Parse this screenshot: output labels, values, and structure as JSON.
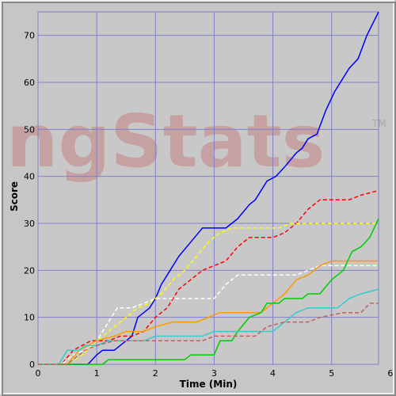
{
  "chart_data": {
    "type": "line",
    "watermark": "ngStats",
    "watermark_mark": "TM",
    "xlabel": "Time (Min)",
    "ylabel": "Score",
    "xlim": [
      0,
      5.8
    ],
    "ylim": [
      0,
      75
    ],
    "xticks": [
      0,
      1,
      2,
      3,
      4,
      5,
      6
    ],
    "yticks": [
      0,
      10,
      20,
      30,
      40,
      50,
      60,
      70
    ],
    "grid": true,
    "series": [
      {
        "color": "#0000ff",
        "dashed": false,
        "x": [
          0,
          0.85,
          1,
          1.1,
          1.3,
          1.5,
          1.6,
          1.7,
          1.9,
          2,
          2.1,
          2.2,
          2.4,
          2.6,
          2.8,
          3.2,
          3.4,
          3.6,
          3.7,
          3.9,
          4.05,
          4.2,
          4.4,
          4.5,
          4.6,
          4.75,
          4.9,
          5.05,
          5.15,
          5.3,
          5.45,
          5.6,
          5.8
        ],
        "values": [
          0,
          0,
          2,
          3,
          3,
          5,
          6,
          10,
          12,
          14,
          17,
          19,
          23,
          26,
          29,
          29,
          31,
          34,
          35,
          39,
          40,
          42,
          45,
          46,
          48,
          49,
          54,
          58,
          60,
          63,
          65,
          70,
          75
        ]
      },
      {
        "color": "#ff0000",
        "dashed": true,
        "x": [
          0,
          0.4,
          0.6,
          0.9,
          1.2,
          1.4,
          1.6,
          1.8,
          2.0,
          2.2,
          2.4,
          2.6,
          2.8,
          3,
          3.2,
          3.4,
          3.6,
          4.0,
          4.2,
          4.4,
          4.6,
          4.8,
          5.3,
          5.5,
          5.8
        ],
        "values": [
          0,
          0,
          3,
          5,
          5,
          6,
          6,
          7,
          10,
          12,
          16,
          18,
          20,
          21,
          22,
          25,
          27,
          27,
          28,
          30,
          33,
          35,
          35,
          36,
          37
        ]
      },
      {
        "color": "#ffff00",
        "dashed": true,
        "x": [
          0,
          0.5,
          0.75,
          1,
          1.3,
          1.5,
          1.7,
          1.9,
          2.1,
          2.3,
          2.5,
          2.7,
          2.9,
          3.1,
          3.3,
          4.1,
          4.3,
          5.8
        ],
        "values": [
          0,
          0,
          2,
          5,
          8,
          10,
          12,
          13,
          15,
          18,
          20,
          23,
          26,
          28,
          29,
          29,
          30,
          30
        ]
      },
      {
        "color": "#ffffff",
        "dashed": true,
        "x": [
          0,
          0.4,
          0.6,
          0.8,
          1,
          1.2,
          1.35,
          1.6,
          1.8,
          2,
          3,
          3.2,
          3.4,
          4.4,
          4.6,
          4.8,
          5.8
        ],
        "values": [
          0,
          0,
          2,
          3,
          5,
          9,
          12,
          12,
          13,
          14,
          14,
          17,
          19,
          19,
          20,
          21,
          21
        ]
      },
      {
        "color": "#ff9900",
        "dashed": false,
        "x": [
          0,
          0.5,
          0.7,
          1,
          1.3,
          1.5,
          1.8,
          2,
          2.3,
          2.7,
          2.9,
          3.1,
          3.8,
          4,
          4.2,
          4.4,
          4.6,
          4.8,
          5,
          5.8
        ],
        "values": [
          0,
          0,
          3,
          5,
          6,
          7,
          7,
          8,
          9,
          9,
          10,
          11,
          11,
          13,
          15,
          18,
          19,
          21,
          22,
          22
        ]
      },
      {
        "color": "#00cc00",
        "dashed": false,
        "x": [
          0,
          1.1,
          1.2,
          2.5,
          2.6,
          3,
          3.1,
          3.3,
          3.4,
          3.6,
          3.8,
          3.9,
          4.1,
          4.2,
          4.5,
          4.6,
          4.8,
          5,
          5.2,
          5.35,
          5.5,
          5.65,
          5.8
        ],
        "values": [
          0,
          0,
          1,
          1,
          2,
          2,
          5,
          5,
          7,
          10,
          11,
          13,
          13,
          14,
          14,
          15,
          15,
          18,
          20,
          24,
          25,
          27,
          31
        ]
      },
      {
        "color": "#33cccc",
        "dashed": false,
        "x": [
          0,
          0.35,
          0.5,
          0.7,
          0.8,
          1.0,
          1.2,
          1.8,
          2.0,
          2.8,
          3.0,
          4.0,
          4.2,
          4.4,
          4.6,
          5.1,
          5.3,
          5.5,
          5.8
        ],
        "values": [
          0,
          0,
          3,
          3,
          4,
          4,
          5,
          5,
          6,
          6,
          7,
          7,
          9,
          11,
          12,
          12,
          14,
          15,
          16
        ]
      },
      {
        "color": "#c06060",
        "dashed": true,
        "x": [
          0,
          0.5,
          0.8,
          1,
          1.3,
          2.8,
          3.0,
          3.7,
          3.9,
          4.2,
          4.6,
          4.8,
          5.2,
          5.5,
          5.65,
          5.8
        ],
        "values": [
          0,
          0,
          3,
          4,
          5,
          5,
          6,
          6,
          8,
          9,
          9,
          10,
          11,
          11,
          13,
          13
        ]
      }
    ]
  }
}
